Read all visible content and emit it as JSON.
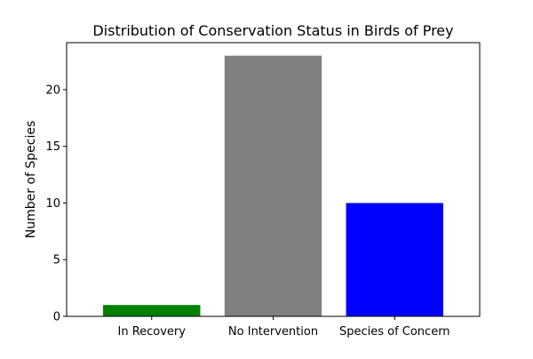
{
  "chart_data": {
    "type": "bar",
    "title": "Distribution of Conservation Status in Birds of Prey",
    "xlabel": "",
    "ylabel": "Number of Species",
    "categories": [
      "In Recovery",
      "No Intervention",
      "Species of Concern"
    ],
    "values": [
      1,
      23,
      10
    ],
    "colors": [
      "#008000",
      "#808080",
      "#0000ff"
    ],
    "ylim": [
      0,
      24.15
    ],
    "yticks": [
      0,
      5,
      10,
      15,
      20
    ],
    "grid": false,
    "legend": "none"
  }
}
